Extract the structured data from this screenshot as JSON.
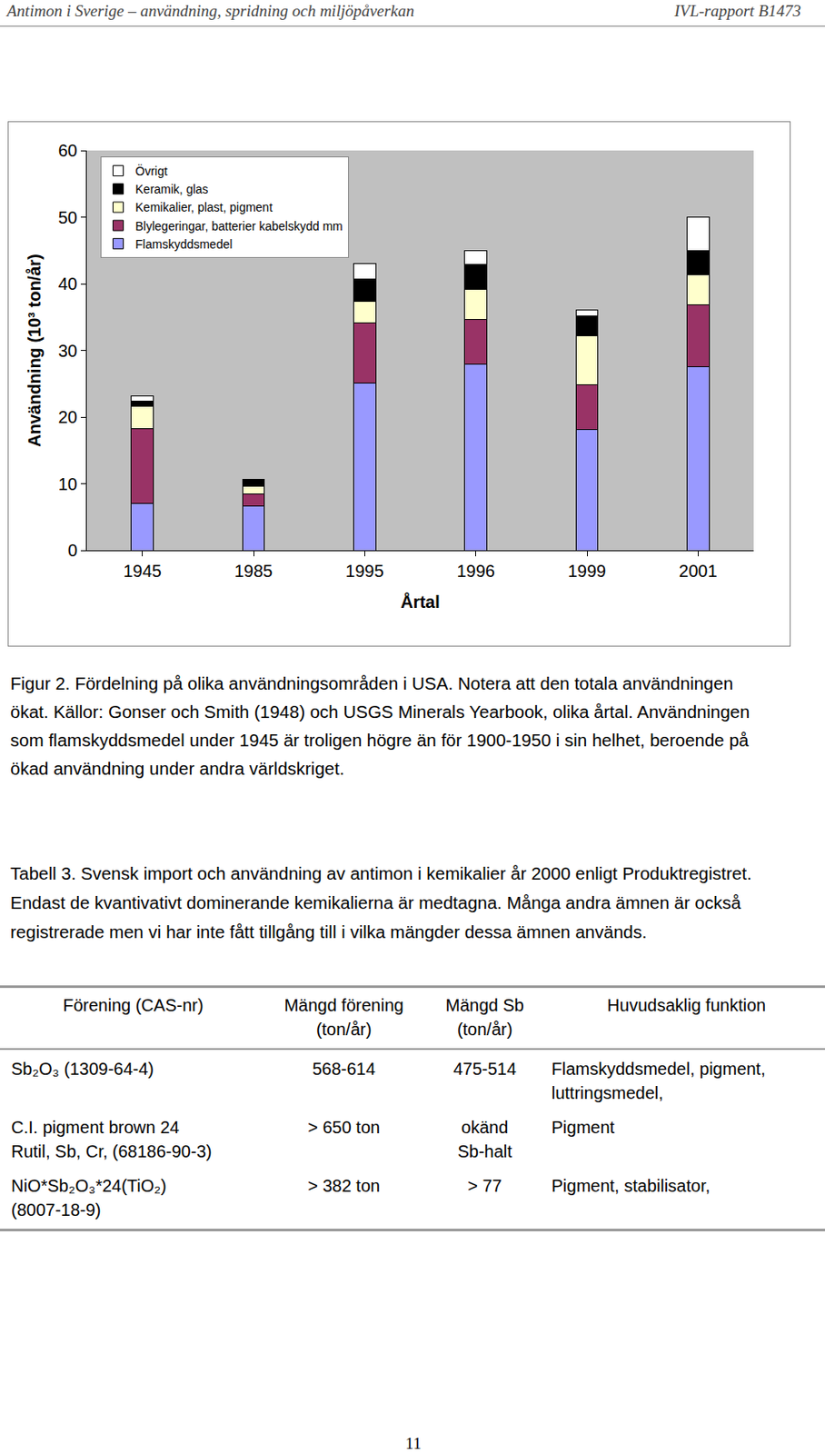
{
  "header": {
    "left": "Antimon i Sverige – användning, spridning och miljöpåverkan",
    "right": "IVL-rapport B1473"
  },
  "chart_data": {
    "type": "bar",
    "stacked": true,
    "categories": [
      "1945",
      "1985",
      "1995",
      "1996",
      "1999",
      "2001"
    ],
    "x_label": "Årtal",
    "y_label": "Användning (10³ ton/år)",
    "ylim": [
      0,
      60
    ],
    "yticks": [
      0,
      10,
      20,
      30,
      40,
      50,
      60
    ],
    "grid": false,
    "legend": "top-left",
    "series": [
      {
        "name": "Flamskyddsmedel",
        "color": "#9999ff",
        "values": [
          7.0,
          6.7,
          25.1,
          28.0,
          18.1,
          27.6
        ]
      },
      {
        "name": "Blylegeringar, batterier kabelskydd mm",
        "color": "#993366",
        "values": [
          11.2,
          1.8,
          9.0,
          6.7,
          6.7,
          9.2
        ]
      },
      {
        "name": "Kemikalier, plast, pigment",
        "color": "#ffffcc",
        "values": [
          3.4,
          1.1,
          3.2,
          4.4,
          7.4,
          4.6
        ]
      },
      {
        "name": "Keramik, glas",
        "color": "#000000",
        "values": [
          0.8,
          1.1,
          3.4,
          3.8,
          3.0,
          3.6
        ]
      },
      {
        "name": "Övrigt",
        "color": "#ffffff",
        "values": [
          0.7,
          0.0,
          2.3,
          2.1,
          0.9,
          5.0
        ]
      }
    ]
  },
  "figure_caption": "Figur 2. Fördelning på olika användningsområden i USA. Notera att den totala användningen ökat. Källor: Gonser och Smith (1948) och USGS Minerals Yearbook, olika årtal. Användningen som flamskyddsmedel under 1945 är troligen högre än för 1900-1950 i sin helhet, beroende på ökad användning under andra världskriget.",
  "table_caption": "Tabell 3. Svensk import och användning av antimon i kemikalier år 2000 enligt Produktregistret. Endast de kvantivativt dominerande kemikalierna är medtagna. Många andra ämnen är också registrerade men vi har inte fått tillgång till i vilka mängder dessa ämnen används.",
  "table": {
    "header": [
      [
        "Förening (CAS-nr)"
      ],
      [
        "Mängd förening",
        "(ton/år)"
      ],
      [
        "Mängd Sb",
        "(ton/år)"
      ],
      [
        "Huvudsaklig funktion"
      ]
    ],
    "rows": [
      [
        [
          "Sb₂O₃ (1309-64-4)"
        ],
        [
          "568-614"
        ],
        [
          "475-514"
        ],
        [
          "Flamskyddsmedel, pigment,",
          "luttringsmedel,"
        ]
      ],
      [
        [
          "C.I. pigment brown 24",
          "Rutil, Sb, Cr, (68186-90-3)"
        ],
        [
          "> 650 ton"
        ],
        [
          "okänd",
          "Sb-halt"
        ],
        [
          "Pigment"
        ]
      ],
      [
        [
          "NiO*Sb₂O₃*24(TiO₂)",
          "(8007-18-9)"
        ],
        [
          "> 382 ton"
        ],
        [
          "> 77"
        ],
        [
          "Pigment, stabilisator,"
        ]
      ]
    ]
  },
  "page_number": "11"
}
